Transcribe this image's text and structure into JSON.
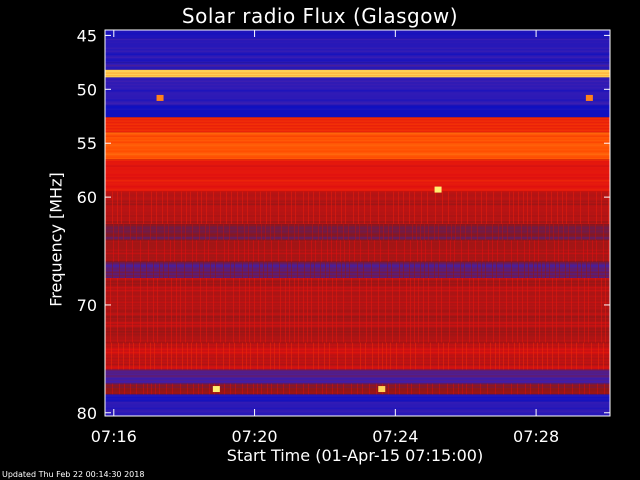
{
  "title": "Solar radio Flux (Glasgow)",
  "footer": "Updated Thu Feb 22 00:14:30 2018",
  "chart_data": {
    "type": "heatmap",
    "title": "Solar radio Flux (Glasgow)",
    "xlabel": "Start Time (01-Apr-15 07:15:00)",
    "ylabel": "Frequency [MHz]",
    "x_ticks": [
      "07:16",
      "07:20",
      "07:24",
      "07:28"
    ],
    "x_tick_minutes": [
      16,
      20,
      24,
      28
    ],
    "xlim_minutes": [
      15.75,
      30.1
    ],
    "y_ticks": [
      45,
      50,
      55,
      60,
      70,
      80
    ],
    "ylim": [
      44.5,
      80.3
    ],
    "colormap": [
      "#1010c0",
      "#4020b0",
      "#8a1818",
      "#e01010",
      "#ff4a00",
      "#ff9020",
      "#fff070"
    ],
    "bands": [
      {
        "from": 44.5,
        "to": 45.3,
        "level": 0.05
      },
      {
        "from": 45.3,
        "to": 47.5,
        "level": 0.08
      },
      {
        "from": 47.5,
        "to": 48.2,
        "level": 0.12
      },
      {
        "from": 48.2,
        "to": 48.9,
        "level": 0.95
      },
      {
        "from": 48.9,
        "to": 51.5,
        "level": 0.1
      },
      {
        "from": 51.5,
        "to": 52.6,
        "level": 0.0
      },
      {
        "from": 52.6,
        "to": 54.0,
        "level": 0.55
      },
      {
        "from": 54.0,
        "to": 56.5,
        "level": 0.7
      },
      {
        "from": 56.5,
        "to": 59.5,
        "level": 0.52
      },
      {
        "from": 59.5,
        "to": 62.5,
        "level": 0.42
      },
      {
        "from": 62.5,
        "to": 64.0,
        "level": 0.3
      },
      {
        "from": 64.0,
        "to": 66.0,
        "level": 0.38
      },
      {
        "from": 66.0,
        "to": 67.5,
        "level": 0.22
      },
      {
        "from": 67.5,
        "to": 73.5,
        "level": 0.4
      },
      {
        "from": 73.5,
        "to": 76.0,
        "level": 0.45
      },
      {
        "from": 76.0,
        "to": 77.3,
        "level": 0.2
      },
      {
        "from": 77.3,
        "to": 78.3,
        "level": 0.35
      },
      {
        "from": 78.3,
        "to": 79.0,
        "level": 0.06
      },
      {
        "from": 79.0,
        "to": 80.3,
        "level": 0.1
      }
    ],
    "bursts": [
      {
        "t": 25.2,
        "f": 59.3,
        "level": 1.0
      },
      {
        "t": 18.9,
        "f": 77.8,
        "level": 1.0
      },
      {
        "t": 23.6,
        "f": 77.8,
        "level": 0.95
      },
      {
        "t": 17.3,
        "f": 50.8,
        "level": 0.8
      },
      {
        "t": 29.5,
        "f": 50.8,
        "level": 0.8
      }
    ]
  }
}
